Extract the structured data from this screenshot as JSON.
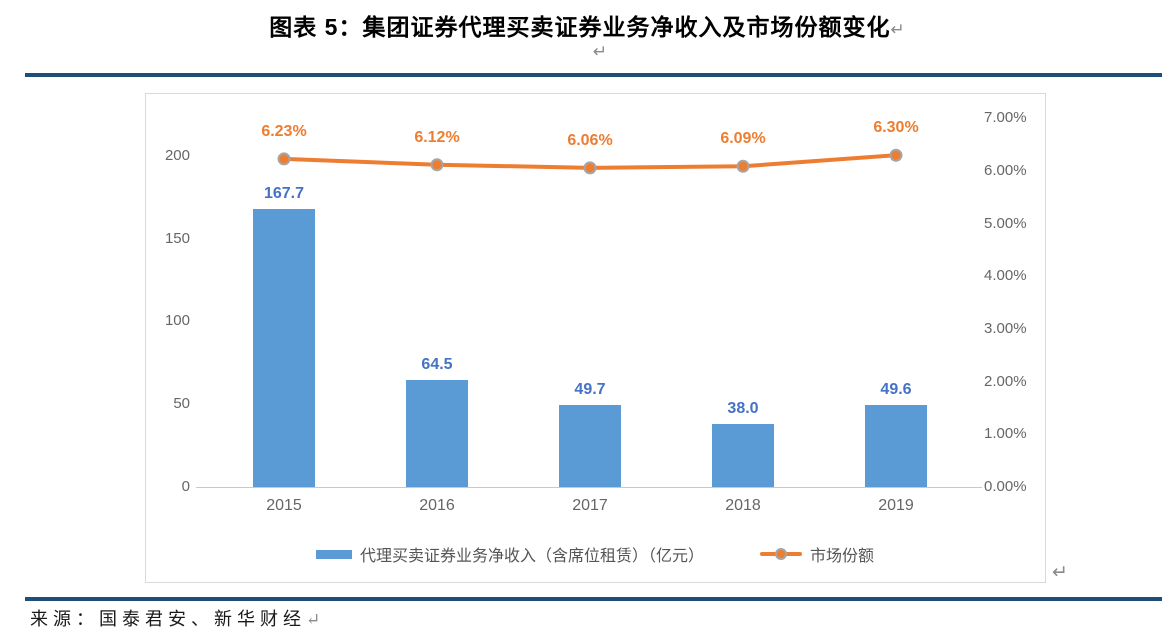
{
  "page": {
    "title": "图表 5：集团证券代理买卖证券业务净收入及市场份额变化",
    "return_mark": "↵",
    "source_label": "来源：国泰君安、新华财经"
  },
  "colors": {
    "rule": "#1F4E79",
    "bar_fill": "#5B9BD5",
    "bar_label": "#4472C4",
    "line": "#ED7D31",
    "marker_border": "#A6A6A6",
    "axis_text": "#666666",
    "frame_border": "#D9D9D9"
  },
  "chart_data": {
    "type": "bar+line",
    "categories": [
      "2015",
      "2016",
      "2017",
      "2018",
      "2019"
    ],
    "series": [
      {
        "name": "代理买卖证券业务净收入（含席位租赁）（亿元）",
        "type": "bar",
        "axis": "left",
        "values": [
          167.7,
          64.5,
          49.7,
          38.0,
          49.6
        ],
        "labels": [
          "167.7",
          "64.5",
          "49.7",
          "38.0",
          "49.6"
        ],
        "color": "#5B9BD5"
      },
      {
        "name": "市场份额",
        "type": "line",
        "axis": "right",
        "values": [
          6.23,
          6.12,
          6.06,
          6.09,
          6.3
        ],
        "labels": [
          "6.23%",
          "6.12%",
          "6.06%",
          "6.09%",
          "6.30%"
        ],
        "color": "#ED7D31"
      }
    ],
    "left_axis": {
      "tick_values": [
        0,
        50,
        100,
        150,
        200
      ],
      "tick_labels": [
        "0",
        "50",
        "100",
        "150",
        "200"
      ],
      "min": 0
    },
    "right_axis": {
      "tick_values": [
        0,
        1,
        2,
        3,
        4,
        5,
        6,
        7
      ],
      "tick_labels": [
        "0.00%",
        "1.00%",
        "2.00%",
        "3.00%",
        "4.00%",
        "5.00%",
        "6.00%",
        "7.00%"
      ],
      "min": 0,
      "max": 7
    },
    "legend_position": "bottom",
    "grid": false
  }
}
